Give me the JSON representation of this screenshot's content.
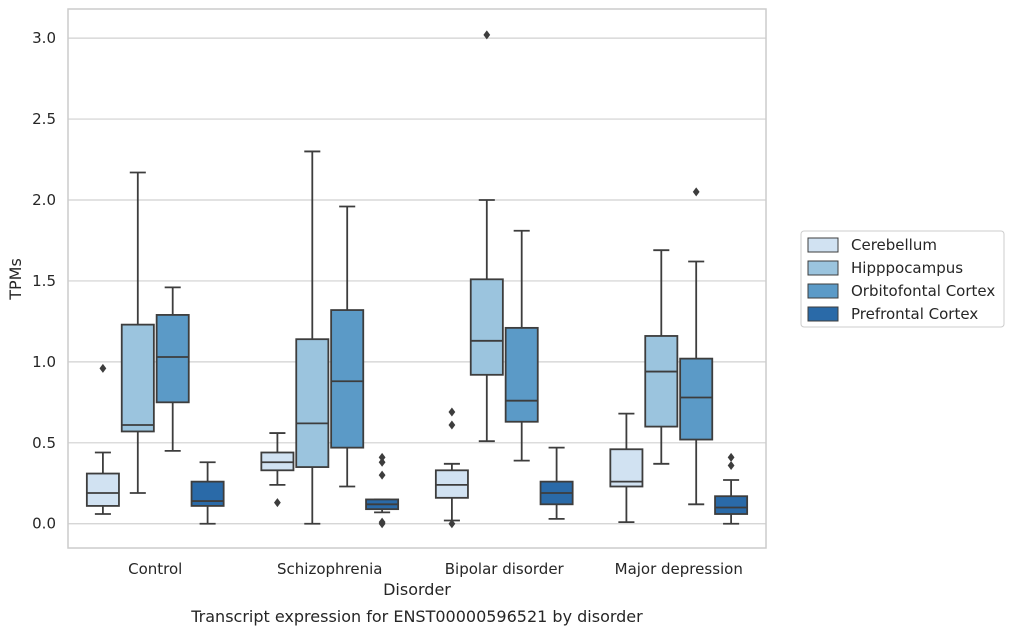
{
  "chart_data": {
    "type": "box",
    "caption": "Transcript expression for ENST00000596521 by disorder",
    "xlabel": "Disorder",
    "ylabel": "TPMs",
    "ylim": [
      -0.15,
      3.18
    ],
    "yticks": [
      0.0,
      0.5,
      1.0,
      1.5,
      2.0,
      2.5,
      3.0
    ],
    "grid": "horizontal",
    "legend_position": "right",
    "categories": [
      "Control",
      "Schizophrenia",
      "Bipolar disorder",
      "Major depression"
    ],
    "series": [
      {
        "name": "Cerebellum",
        "color": "#d1e2f2",
        "boxes": [
          {
            "whislo": 0.06,
            "q1": 0.11,
            "med": 0.19,
            "q3": 0.31,
            "whishi": 0.44,
            "fliers": [
              0.96
            ]
          },
          {
            "whislo": 0.24,
            "q1": 0.33,
            "med": 0.38,
            "q3": 0.44,
            "whishi": 0.56,
            "fliers": [
              0.13
            ]
          },
          {
            "whislo": 0.02,
            "q1": 0.16,
            "med": 0.24,
            "q3": 0.33,
            "whishi": 0.37,
            "fliers": [
              0.69,
              0.61,
              0.0
            ]
          },
          {
            "whislo": 0.01,
            "q1": 0.23,
            "med": 0.26,
            "q3": 0.46,
            "whishi": 0.68,
            "fliers": []
          }
        ]
      },
      {
        "name": "Hipppocampus",
        "color": "#9bc4de",
        "boxes": [
          {
            "whislo": 0.19,
            "q1": 0.57,
            "med": 0.61,
            "q3": 1.23,
            "whishi": 2.17,
            "fliers": []
          },
          {
            "whislo": 0.0,
            "q1": 0.35,
            "med": 0.62,
            "q3": 1.14,
            "whishi": 2.3,
            "fliers": []
          },
          {
            "whislo": 0.51,
            "q1": 0.92,
            "med": 1.13,
            "q3": 1.51,
            "whishi": 2.0,
            "fliers": [
              3.02
            ]
          },
          {
            "whislo": 0.37,
            "q1": 0.6,
            "med": 0.94,
            "q3": 1.16,
            "whishi": 1.69,
            "fliers": []
          }
        ]
      },
      {
        "name": "Orbitofontal Cortex",
        "color": "#5b9ac7",
        "boxes": [
          {
            "whislo": 0.45,
            "q1": 0.75,
            "med": 1.03,
            "q3": 1.29,
            "whishi": 1.46,
            "fliers": []
          },
          {
            "whislo": 0.23,
            "q1": 0.47,
            "med": 0.88,
            "q3": 1.32,
            "whishi": 1.96,
            "fliers": []
          },
          {
            "whislo": 0.39,
            "q1": 0.63,
            "med": 0.76,
            "q3": 1.21,
            "whishi": 1.81,
            "fliers": []
          },
          {
            "whislo": 0.12,
            "q1": 0.52,
            "med": 0.78,
            "q3": 1.02,
            "whishi": 1.62,
            "fliers": [
              2.05
            ]
          }
        ]
      },
      {
        "name": "Prefrontal Cortex",
        "color": "#2a6aa8",
        "boxes": [
          {
            "whislo": 0.0,
            "q1": 0.11,
            "med": 0.14,
            "q3": 0.26,
            "whishi": 0.38,
            "fliers": []
          },
          {
            "whislo": 0.07,
            "q1": 0.09,
            "med": 0.12,
            "q3": 0.15,
            "whishi": 0.15,
            "fliers": [
              0.41,
              0.38,
              0.3,
              0.01,
              0.0
            ]
          },
          {
            "whislo": 0.03,
            "q1": 0.12,
            "med": 0.19,
            "q3": 0.26,
            "whishi": 0.47,
            "fliers": []
          },
          {
            "whislo": 0.0,
            "q1": 0.06,
            "med": 0.1,
            "q3": 0.17,
            "whishi": 0.27,
            "fliers": [
              0.41,
              0.36
            ]
          }
        ]
      }
    ]
  }
}
